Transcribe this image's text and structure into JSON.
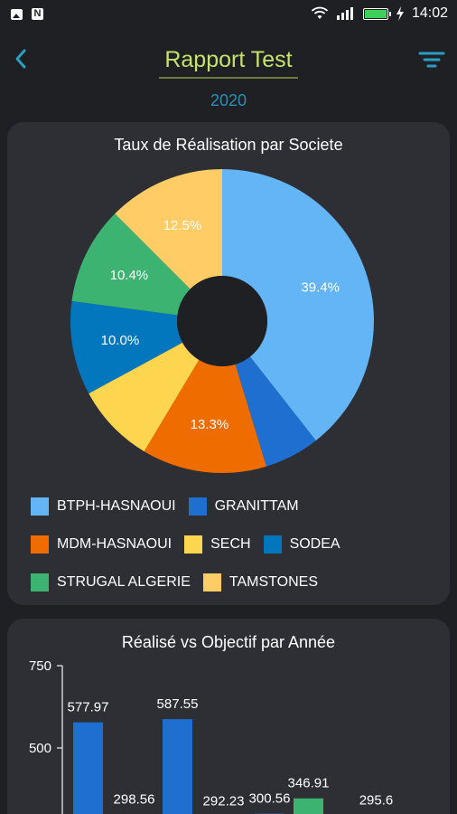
{
  "status_bar": {
    "time": "14:02",
    "icons": [
      "image-icon",
      "n-icon",
      "wifi-icon",
      "signal-icon",
      "battery-icon",
      "charging-icon"
    ]
  },
  "header": {
    "title": "Rapport Test",
    "year": "2020",
    "back_icon": "chevron-left-icon",
    "filter_icon": "filter-icon"
  },
  "colors": {
    "background": "#1f2023",
    "card": "#2d2f34",
    "title": "#c5e36b",
    "year": "#2b8fb8"
  },
  "pie_card": {
    "title": "Taux de Réalisation par Societe",
    "legend": [
      {
        "label": "BTPH-HASNAOUI",
        "color": "#64b5f6"
      },
      {
        "label": "GRANITTAM",
        "color": "#1e6fd0"
      },
      {
        "label": "MDM-HASNAOUI",
        "color": "#ef6c00"
      },
      {
        "label": "SECH",
        "color": "#fdd54f"
      },
      {
        "label": "SODEA",
        "color": "#0277bd"
      },
      {
        "label": "STRUGAL ALGERIE",
        "color": "#3cb371"
      },
      {
        "label": "TAMSTONES",
        "color": "#ffcc66"
      }
    ]
  },
  "bar_card": {
    "title": "Réalisé vs Objectif par Année"
  },
  "chart_data": [
    {
      "type": "pie",
      "title": "Taux de Réalisation par Societe",
      "donut": true,
      "slices": [
        {
          "name": "BTPH-HASNAOUI",
          "value": 39.4,
          "label": "39.4%",
          "color": "#64b5f6"
        },
        {
          "name": "GRANITTAM",
          "value": 5.9,
          "label": "",
          "color": "#1e6fd0"
        },
        {
          "name": "MDM-HASNAOUI",
          "value": 13.3,
          "label": "13.3%",
          "color": "#ef6c00"
        },
        {
          "name": "SECH",
          "value": 8.5,
          "label": "",
          "color": "#fdd54f"
        },
        {
          "name": "SODEA",
          "value": 10.0,
          "label": "10.0%",
          "color": "#0277bd"
        },
        {
          "name": "STRUGAL ALGERIE",
          "value": 10.4,
          "label": "10.4%",
          "color": "#3cb371"
        },
        {
          "name": "TAMSTONES",
          "value": 12.5,
          "label": "12.5%",
          "color": "#ffcc66"
        }
      ],
      "legend_position": "bottom"
    },
    {
      "type": "bar",
      "title": "Réalisé vs Objectif par Année",
      "ylim": [
        0,
        750
      ],
      "yticks": [
        500,
        750
      ],
      "bars": [
        {
          "value": 577.97,
          "label": "577.97",
          "color": "#1e6fd0"
        },
        {
          "value": 298.56,
          "label": "298.56",
          "color": "#1e6fd0"
        },
        {
          "value": 587.55,
          "label": "587.55",
          "color": "#1e6fd0"
        },
        {
          "value": 292.23,
          "label": "292.23",
          "color": "#1e6fd0"
        },
        {
          "value": 300.56,
          "label": "300.56",
          "color": "#1e6fd0"
        },
        {
          "value": 346.91,
          "label": "346.91",
          "color": "#3cb371"
        },
        {
          "value": 295.6,
          "label": "295.6",
          "color": "#1e6fd0"
        }
      ]
    }
  ]
}
